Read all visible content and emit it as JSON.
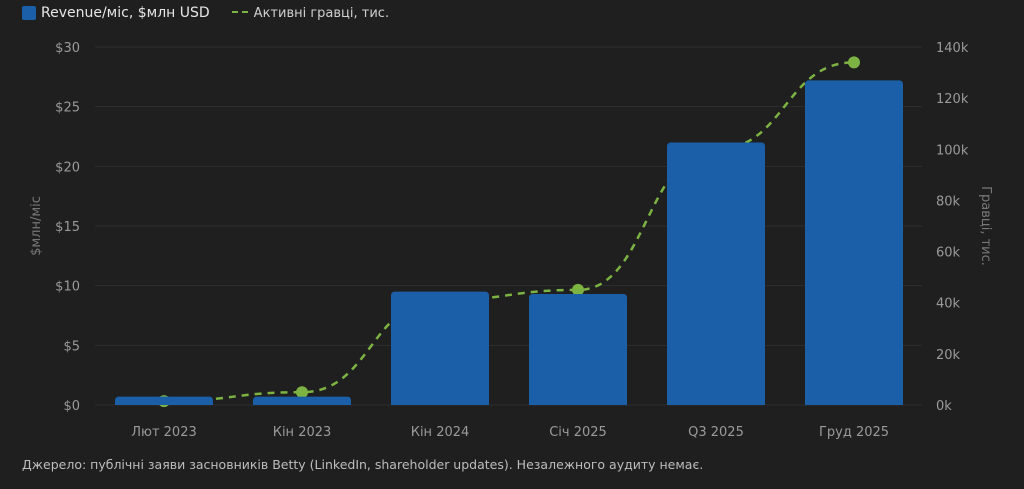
{
  "chart_data": {
    "type": "bar",
    "categories": [
      "Лют 2023",
      "Кін 2023",
      "Кін 2024",
      "Січ 2025",
      "Q3 2025",
      "Груд 2025"
    ],
    "series": [
      {
        "name": "Revenue/міс, $млн USD",
        "type": "bar",
        "axis": "left",
        "color": "#1a5fa8",
        "values": [
          0.7,
          0.7,
          9.5,
          9.3,
          22,
          27.2
        ]
      },
      {
        "name": "Активні гравці, тис.",
        "type": "line",
        "style": "dashed",
        "axis": "right",
        "color": "#7cb342",
        "values": [
          1.5,
          5,
          41,
          45,
          100,
          134
        ]
      }
    ],
    "ylabel": "$млн/міс",
    "y2label": "Гравці, тис.",
    "ylim": [
      0,
      30
    ],
    "y2lim": [
      0,
      140
    ],
    "yticks": [
      "$0",
      "$5",
      "$10",
      "$15",
      "$20",
      "$25",
      "$30"
    ],
    "y2ticks": [
      "0k",
      "20k",
      "40k",
      "60k",
      "80k",
      "100k",
      "120k",
      "140k"
    ],
    "grid": true,
    "legend": "top-left"
  },
  "source": "Джерело: публічні заяви засновників Betty (LinkedIn, shareholder updates). Незалежного аудиту немає."
}
